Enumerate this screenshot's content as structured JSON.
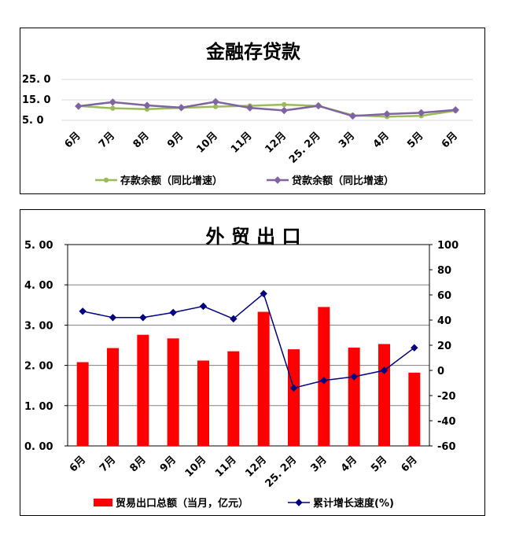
{
  "chart_data": [
    {
      "type": "line",
      "title": "金融存贷款",
      "categories": [
        "6月",
        "7月",
        "8月",
        "9月",
        "10月",
        "11月",
        "12月",
        "25. 2月",
        "3月",
        "4月",
        "5月",
        "6月"
      ],
      "yticks": [
        "25. 0",
        "15. 0",
        "5. 0"
      ],
      "ylim": [
        5,
        25
      ],
      "grid": true,
      "legend": "bottom",
      "series": [
        {
          "name": "存款余额（同比增速）",
          "color": "#9bbb59",
          "marker": "circle",
          "values": [
            12.0,
            10.9,
            10.5,
            11.1,
            11.7,
            12.1,
            12.7,
            12.0,
            7.5,
            6.8,
            7.2,
            9.7
          ]
        },
        {
          "name": "贷款余额（同比增速）",
          "color": "#8064a2",
          "marker": "diamond",
          "values": [
            11.9,
            13.9,
            12.3,
            11.2,
            14.1,
            11.1,
            9.8,
            12.1,
            7.1,
            8.1,
            8.7,
            10.1
          ]
        }
      ]
    },
    {
      "type": "bar",
      "title": "外 贸 出 口",
      "categories": [
        "6月",
        "7月",
        "8月",
        "9月",
        "10月",
        "11月",
        "12月",
        "25. 2月",
        "3月",
        "4月",
        "5月",
        "6月"
      ],
      "yticks_left": [
        "5. 00",
        "4. 00",
        "3. 00",
        "2. 00",
        "1. 00",
        "0. 00"
      ],
      "yticks_right": [
        "100",
        "80",
        "60",
        "40",
        "20",
        "0",
        "-20",
        "-40",
        "-60"
      ],
      "ylim_left": [
        0,
        5
      ],
      "ylim_right": [
        -60,
        100
      ],
      "grid": true,
      "legend": "bottom",
      "series": [
        {
          "name": "贸易出口总额（当月，亿元）",
          "type": "bar",
          "color": "#ff0000",
          "axis": "left",
          "values": [
            2.08,
            2.43,
            2.76,
            2.67,
            2.12,
            2.35,
            3.33,
            2.4,
            3.45,
            2.44,
            2.53,
            1.82
          ]
        },
        {
          "name": "累计增长速度(%)",
          "type": "line",
          "color": "#000080",
          "marker": "diamond",
          "axis": "right",
          "values": [
            47,
            42,
            42,
            46,
            51,
            41,
            61,
            -14,
            -8,
            -5,
            0,
            18
          ]
        }
      ]
    }
  ]
}
